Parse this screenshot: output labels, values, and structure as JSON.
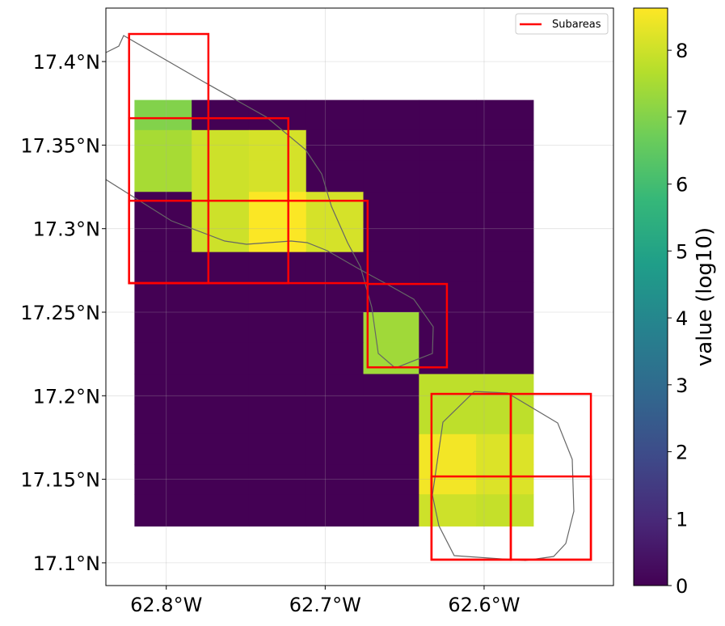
{
  "chart_data": {
    "type": "heatmap",
    "xlim": [
      -62.838,
      -62.5186
    ],
    "ylim": [
      17.0864,
      17.432
    ],
    "xticks": [
      {
        "value": -62.8,
        "label": "62.8°W"
      },
      {
        "value": -62.7,
        "label": "62.7°W"
      },
      {
        "value": -62.6,
        "label": "62.6°W"
      }
    ],
    "yticks": [
      {
        "value": 17.1,
        "label": "17.1°N"
      },
      {
        "value": 17.15,
        "label": "17.15°N"
      },
      {
        "value": 17.2,
        "label": "17.2°N"
      },
      {
        "value": 17.25,
        "label": "17.25°N"
      },
      {
        "value": 17.3,
        "label": "17.3°N"
      },
      {
        "value": 17.35,
        "label": "17.35°N"
      },
      {
        "value": 17.4,
        "label": "17.4°N"
      }
    ],
    "grid": true,
    "colormap": "viridis",
    "clim": [
      0,
      8.63
    ],
    "colorbar_ticks": [
      0,
      1,
      2,
      3,
      4,
      5,
      6,
      7,
      8
    ],
    "colorbar_label": "value (log10)",
    "lon_edges": [
      -62.82,
      -62.784,
      -62.748,
      -62.712,
      -62.676,
      -62.641,
      -62.605,
      -62.569
    ],
    "lat_edges": [
      17.377,
      17.359,
      17.341,
      17.322,
      17.304,
      17.286,
      17.268,
      17.25,
      17.232,
      17.213,
      17.195,
      17.177,
      17.159,
      17.141,
      17.122
    ],
    "values": [
      [
        7.0,
        0,
        0,
        0,
        0,
        0,
        0
      ],
      [
        7.5,
        8.0,
        8.1,
        0,
        0,
        0,
        0
      ],
      [
        7.5,
        8.0,
        8.1,
        0,
        0,
        0,
        0
      ],
      [
        0,
        8.0,
        8.6,
        8.1,
        0,
        0,
        0
      ],
      [
        0,
        8.0,
        8.6,
        8.1,
        0,
        0,
        0
      ],
      [
        0,
        0,
        0,
        0,
        0,
        0,
        0
      ],
      [
        0,
        0,
        0,
        0,
        0,
        0,
        0
      ],
      [
        0,
        0,
        0,
        0,
        7.4,
        0,
        0
      ],
      [
        0,
        0,
        0,
        0,
        7.4,
        0,
        0
      ],
      [
        0,
        0,
        0,
        0,
        0,
        7.8,
        7.8
      ],
      [
        0,
        0,
        0,
        0,
        0,
        7.8,
        7.8
      ],
      [
        0,
        0,
        0,
        0,
        0,
        8.5,
        8.2
      ],
      [
        0,
        0,
        0,
        0,
        0,
        8.5,
        8.2
      ],
      [
        0,
        0,
        0,
        0,
        0,
        8.0,
        7.9
      ]
    ],
    "subareas": {
      "name": "Subareas",
      "color": "#ff0000",
      "boxes": [
        [
          -62.8234,
          17.2674,
          -62.7735,
          17.4165
        ],
        [
          -62.8234,
          17.2674,
          -62.7232,
          17.3661
        ],
        [
          -62.8234,
          17.2674,
          -62.6733,
          17.3167
        ],
        [
          -62.6733,
          17.217,
          -62.6234,
          17.2669
        ],
        [
          -62.6331,
          17.1019,
          -62.5832,
          17.2011
        ],
        [
          -62.5832,
          17.1019,
          -62.5328,
          17.2011
        ],
        [
          -62.6331,
          17.1019,
          -62.5328,
          17.1517
        ]
      ]
    },
    "legend": "upper right"
  }
}
